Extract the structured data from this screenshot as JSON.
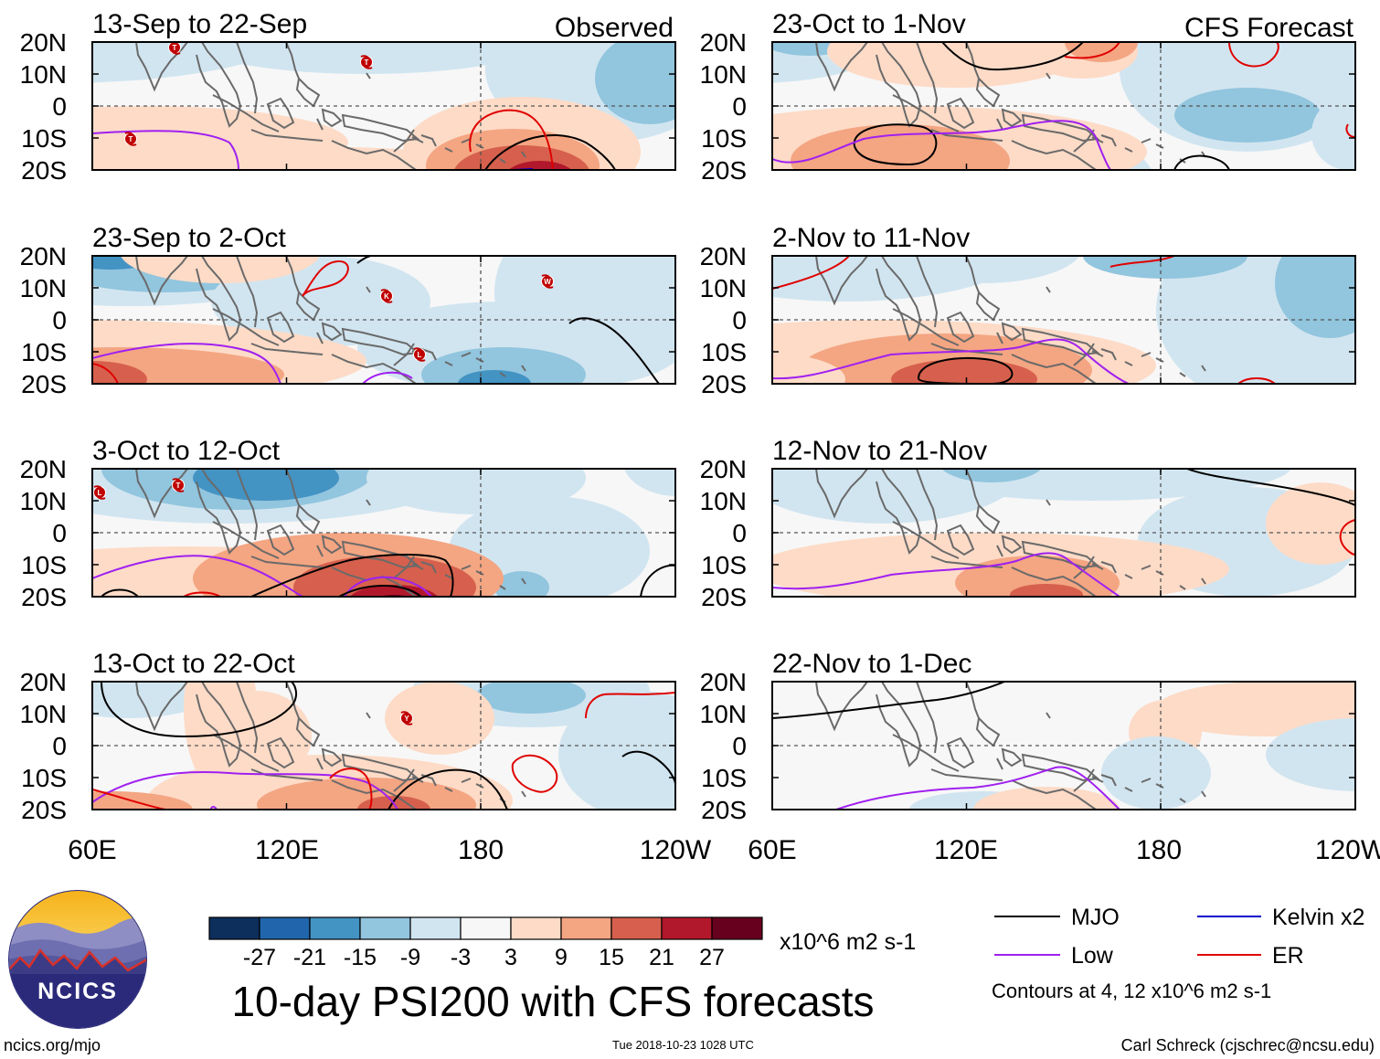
{
  "chart_data": {
    "type": "heatmap",
    "title": "10-day PSI200 with CFS forecasts",
    "units": "x10^6 m2 s-1",
    "columns": [
      {
        "header": "Observed",
        "panels": [
          {
            "title": "13-Sep to 22-Sep"
          },
          {
            "title": "23-Sep to 2-Oct"
          },
          {
            "title": "3-Oct to 12-Oct"
          },
          {
            "title": "13-Oct to 22-Oct"
          }
        ]
      },
      {
        "header": "CFS Forecast",
        "panels": [
          {
            "title": "23-Oct to 1-Nov"
          },
          {
            "title": "2-Nov to 11-Nov"
          },
          {
            "title": "12-Nov to 21-Nov"
          },
          {
            "title": "22-Nov to 1-Dec"
          }
        ]
      }
    ],
    "lat_labels": [
      "20N",
      "10N",
      "0",
      "10S",
      "20S"
    ],
    "lon_labels": [
      "60E",
      "120E",
      "180",
      "120W"
    ],
    "colorbar": {
      "bounds": [
        -33,
        -27,
        -21,
        -15,
        -9,
        -3,
        3,
        9,
        15,
        21,
        27,
        33
      ],
      "tick_labels": [
        "-27",
        "-21",
        "-15",
        "-9",
        "-3",
        "3",
        "9",
        "15",
        "21",
        "27"
      ],
      "colors": [
        "#0d2f5c",
        "#2166ac",
        "#4393c3",
        "#92c5de",
        "#d1e5f0",
        "#f7f7f7",
        "#fddbc7",
        "#f4a582",
        "#d6604d",
        "#b2182b",
        "#67001f"
      ]
    },
    "legend": [
      {
        "label": "MJO",
        "color": "#000000"
      },
      {
        "label": "Kelvin x2",
        "color": "#0000cc"
      },
      {
        "label": "Low",
        "color": "#a020f0"
      },
      {
        "label": "ER",
        "color": "#e00000"
      }
    ],
    "contour_note": "Contours at 4, 12 x10^6 m2 s-1"
  },
  "footer": {
    "url": "ncics.org/mjo",
    "timestamp": "Tue 2018-10-23 1028 UTC",
    "credit": "Carl Schreck (cjschrec@ncsu.edu)",
    "logo_text": "NCICS"
  }
}
